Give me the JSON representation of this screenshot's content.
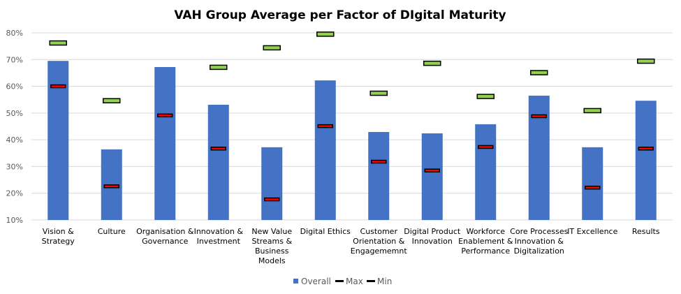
{
  "chart_data": {
    "type": "bar",
    "title": "VAH Group Average per Factor of DIgital Maturity",
    "categories": [
      [
        "Vision &",
        "Strategy"
      ],
      [
        "Culture"
      ],
      [
        "Organisation &",
        "Governance"
      ],
      [
        "Innovation &",
        "Investment"
      ],
      [
        "New Value",
        "Streams &",
        "Business",
        "Models"
      ],
      [
        "Digital Ethics"
      ],
      [
        "Customer",
        "Orientation &",
        "Engagememnt"
      ],
      [
        "Digital Product",
        "Innovation"
      ],
      [
        "Workforce",
        "Enablement &",
        "Performance"
      ],
      [
        "Core Processes",
        "Innovation &",
        "Digitalization"
      ],
      [
        "IT Excellence"
      ],
      [
        "Results"
      ]
    ],
    "series": [
      {
        "name": "Overall",
        "type": "bar",
        "color": "#4472C4",
        "values": [
          69.5,
          36.4,
          67.2,
          53.1,
          37.2,
          62.2,
          42.9,
          42.4,
          45.8,
          56.5,
          37.2,
          54.6
        ]
      },
      {
        "name": "Max",
        "type": "marker",
        "color": "#92D050",
        "values": [
          76.2,
          54.6,
          null,
          67.1,
          74.4,
          79.5,
          57.4,
          68.6,
          56.2,
          65.1,
          50.9,
          69.4
        ]
      },
      {
        "name": "Min",
        "type": "marker",
        "color": "#FF0000",
        "values": [
          60.0,
          22.6,
          49.1,
          36.7,
          17.7,
          45.1,
          31.8,
          28.5,
          37.3,
          48.8,
          22.1,
          36.7
        ]
      }
    ],
    "ylim": [
      10,
      80
    ],
    "yticks": [
      "10%",
      "20%",
      "30%",
      "40%",
      "50%",
      "60%",
      "70%",
      "80%"
    ],
    "grid": true,
    "legend": "bottom"
  }
}
